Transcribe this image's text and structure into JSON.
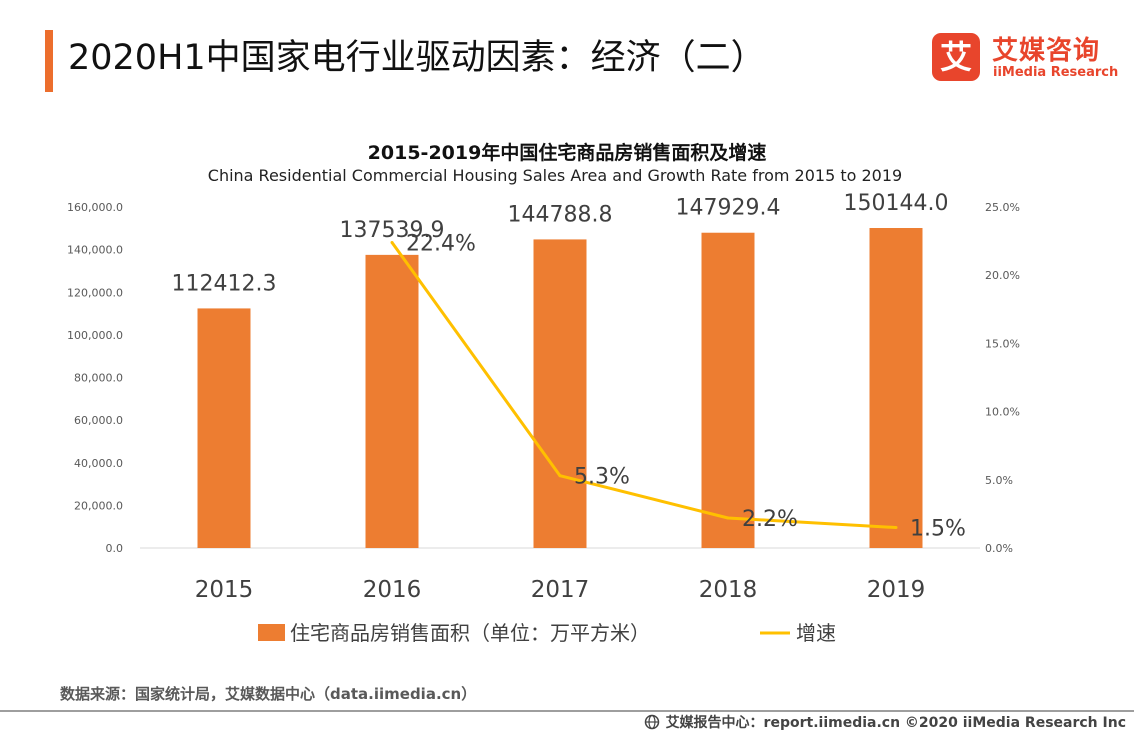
{
  "header": {
    "title": "2020H1中国家电行业驱动因素：经济（二）",
    "logo_mark": "艾",
    "logo_cn": "艾媒咨询",
    "logo_en": "iiMedia Research"
  },
  "colors": {
    "accent": "#ec6e2d",
    "bar": "#ed7d31",
    "line": "#ffc000",
    "logo": "#e8452c"
  },
  "chart_data": {
    "type": "bar",
    "title": "2015-2019年中国住宅商品房销售面积及增速",
    "subtitle": "China Residential Commercial Housing Sales Area and Growth Rate from 2015 to 2019",
    "categories": [
      "2015",
      "2016",
      "2017",
      "2018",
      "2019"
    ],
    "series": [
      {
        "name": "住宅商品房销售面积（单位：万平方米）",
        "type": "bar",
        "axis": "left",
        "values": [
          112412.3,
          137539.9,
          144788.8,
          147929.4,
          150144.0
        ],
        "labels": [
          "112412.3",
          "137539.9",
          "144788.8",
          "147929.4",
          "150144.0"
        ]
      },
      {
        "name": "增速",
        "type": "line",
        "axis": "right",
        "x": [
          "2016",
          "2017",
          "2018",
          "2019"
        ],
        "values": [
          22.4,
          5.3,
          2.2,
          1.5
        ],
        "labels": [
          "22.4%",
          "5.3%",
          "2.2%",
          "1.5%"
        ]
      }
    ],
    "y_left": {
      "range": [
        0,
        160000
      ],
      "ticks": [
        "0.0",
        "20,000.0",
        "40,000.0",
        "60,000.0",
        "80,000.0",
        "100,000.0",
        "120,000.0",
        "140,000.0",
        "160,000.0"
      ]
    },
    "y_right": {
      "range": [
        0,
        25
      ],
      "ticks": [
        "0.0%",
        "5.0%",
        "10.0%",
        "15.0%",
        "20.0%",
        "25.0%"
      ]
    },
    "grid": false,
    "legend": "bottom"
  },
  "source": "数据来源：国家统计局，艾媒数据中心（data.iimedia.cn）",
  "footer": "艾媒报告中心：report.iimedia.cn  ©2020  iiMedia Research  Inc"
}
